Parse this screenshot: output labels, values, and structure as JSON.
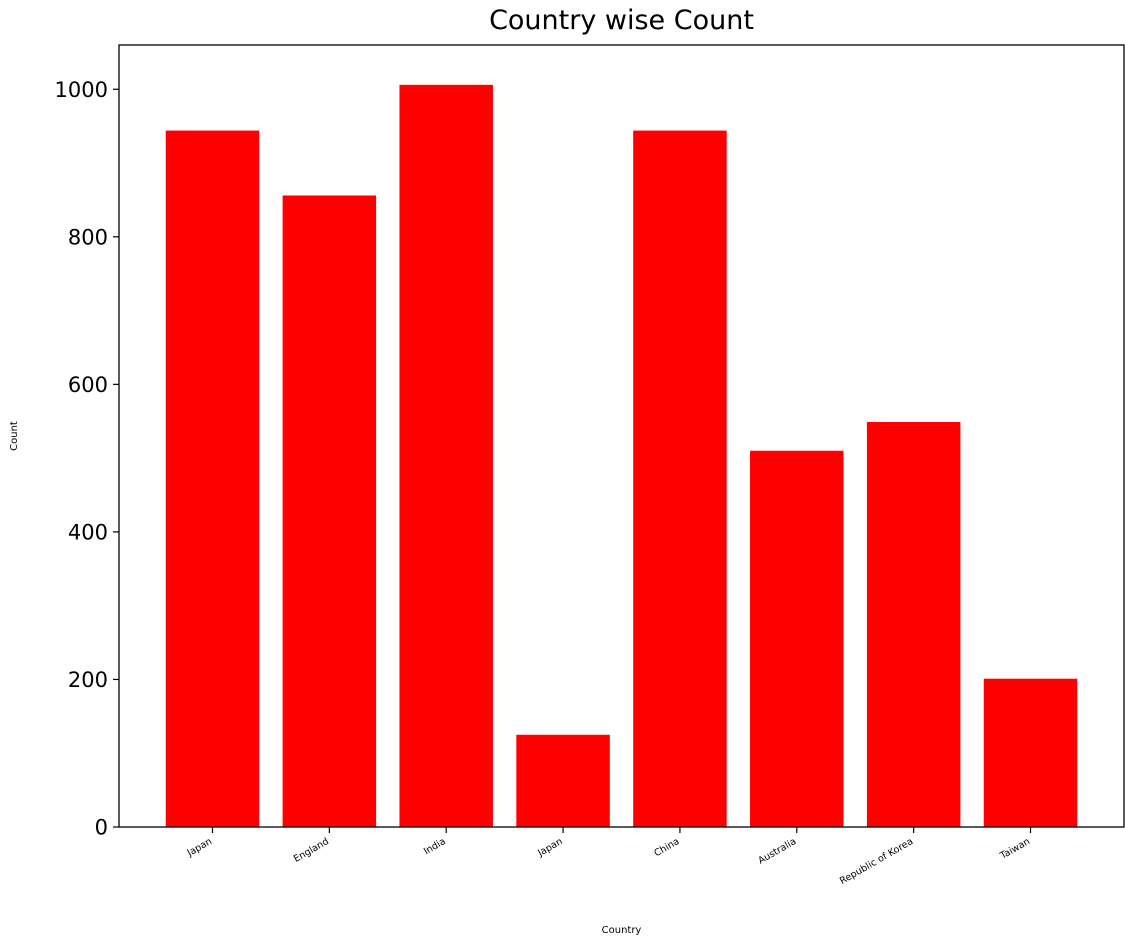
{
  "chart_data": {
    "type": "bar",
    "title": "Country wise Count",
    "xlabel": "Country",
    "ylabel": "Count",
    "categories": [
      "Japan",
      "England",
      "India",
      "Japan",
      "China",
      "Australia",
      "Republic of Korea",
      "Taiwan"
    ],
    "values": [
      944,
      856,
      1006,
      125,
      944,
      510,
      549,
      201
    ],
    "ylim": [
      0,
      1060
    ],
    "yticks": [
      0,
      200,
      400,
      600,
      800,
      1000
    ],
    "bar_color": "#ff0000",
    "grid": false,
    "legend": "none"
  }
}
